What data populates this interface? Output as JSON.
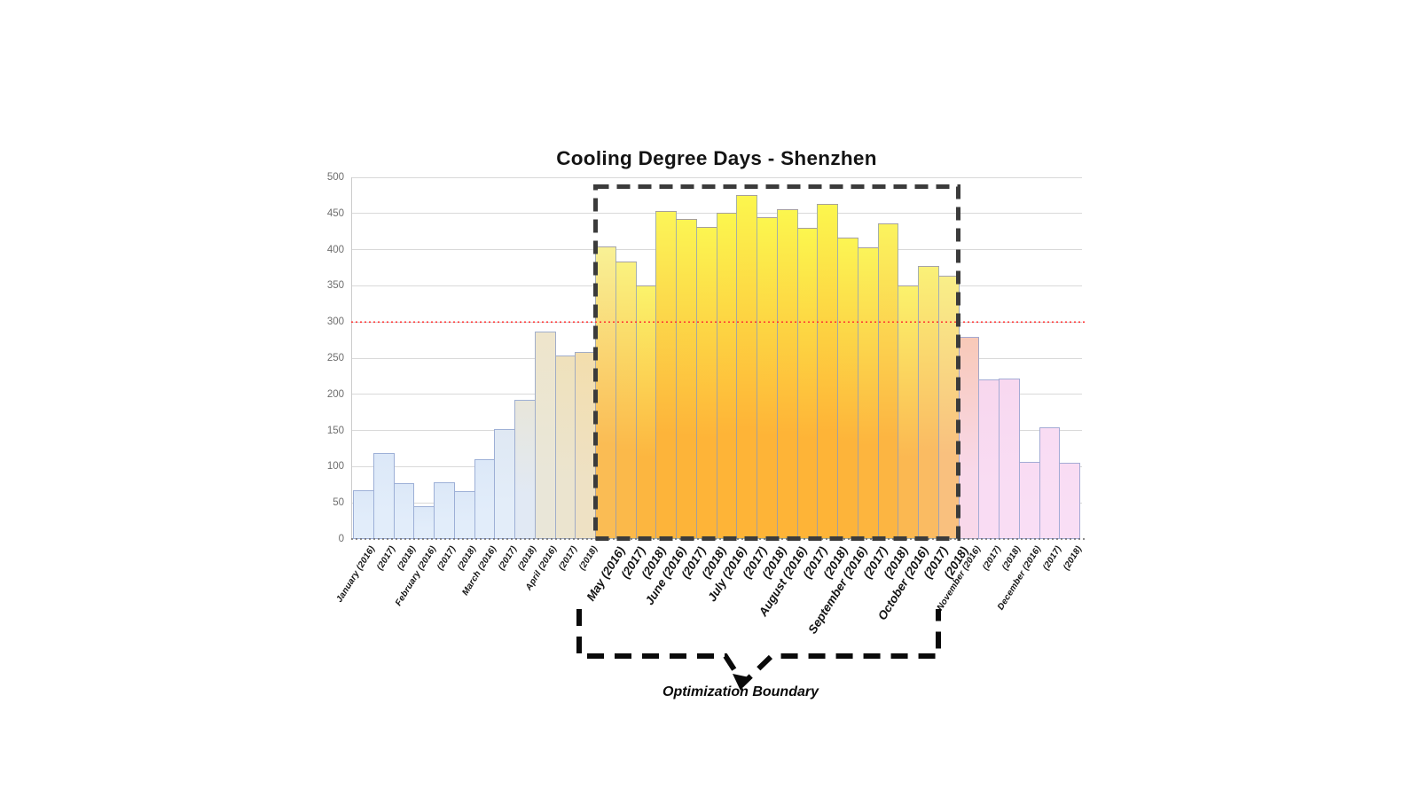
{
  "chart": {
    "title": "Cooling Degree Days - Shenzhen",
    "optimization_boundary_label": "Optimization Boundary"
  },
  "colors": {
    "gridline": "#d9d9d9",
    "axis_text": "#6e6e6e",
    "label_text": "#141414",
    "reference_line": "#ff3131",
    "boundary_dash": "#3b3b3b",
    "bracket_dash": "#0a0a0a",
    "bar_border": "rgba(128,150,200,0.7)"
  },
  "chart_data": {
    "type": "bar",
    "title": "Cooling Degree Days - Shenzhen",
    "xlabel": "",
    "ylabel": "",
    "ylim": [
      0,
      500
    ],
    "ytick_step": 50,
    "yticks": [
      0,
      50,
      100,
      150,
      200,
      250,
      300,
      350,
      400,
      450,
      500
    ],
    "grid": "horizontal",
    "legend": "none",
    "reference_line": {
      "value": 300,
      "color": "#ff3131",
      "style": "dotted"
    },
    "categories": [
      "January (2016)",
      "(2017)",
      "(2018)",
      "February (2016)",
      "(2017)",
      "(2018)",
      "March (2016)",
      "(2017)",
      "(2018)",
      "April (2016)",
      "(2017)",
      "(2018)",
      "May (2016)",
      "(2017)",
      "(2018)",
      "June (2016)",
      "(2017)",
      "(2018)",
      "July (2016)",
      "(2017)",
      "(2018)",
      "August (2016)",
      "(2017)",
      "(2018)",
      "September (2016)",
      "(2017)",
      "(2018)",
      "October (2016)",
      "(2017)",
      "(2018)",
      "November (2016)",
      "(2017)",
      "(2018)",
      "December (2016)",
      "(2017)",
      "(2018)"
    ],
    "values": [
      68,
      119,
      77,
      45,
      79,
      66,
      110,
      152,
      192,
      287,
      254,
      258,
      404,
      383,
      350,
      454,
      442,
      431,
      451,
      475,
      445,
      456,
      430,
      463,
      417,
      403,
      436,
      351,
      378,
      364,
      280,
      221,
      222,
      107,
      154,
      106
    ],
    "series_by_year": [
      {
        "name": "2016",
        "values": [
          68,
          45,
          110,
          287,
          404,
          454,
          451,
          456,
          417,
          351,
          280,
          107
        ]
      },
      {
        "name": "2017",
        "values": [
          119,
          79,
          152,
          254,
          383,
          442,
          475,
          430,
          403,
          378,
          221,
          154
        ]
      },
      {
        "name": "2018",
        "values": [
          77,
          66,
          192,
          258,
          350,
          431,
          445,
          463,
          436,
          364,
          222,
          106
        ]
      }
    ],
    "months": [
      "January",
      "February",
      "March",
      "April",
      "May",
      "June",
      "July",
      "August",
      "September",
      "October",
      "November",
      "December"
    ],
    "optimization_boundary": {
      "label": "Optimization Boundary",
      "months": [
        "May",
        "June",
        "July",
        "August",
        "September",
        "October"
      ],
      "first_bar_index": 12,
      "last_bar_index": 29
    },
    "bar_styles": [
      {
        "top": "#dce8f8",
        "bottom": "#e2edfa"
      },
      {
        "top": "#dce8f8",
        "bottom": "#e2edfa"
      },
      {
        "top": "#dce8f8",
        "bottom": "#e2edfa"
      },
      {
        "top": "#dce8f8",
        "bottom": "#e2edfa"
      },
      {
        "top": "#dce8f8",
        "bottom": "#e2edfa"
      },
      {
        "top": "#dce8f8",
        "bottom": "#e2edfa"
      },
      {
        "top": "#dce8f8",
        "bottom": "#e2edfa"
      },
      {
        "top": "#dfe8f3",
        "bottom": "#e3edf9"
      },
      {
        "top": "#e8e6da",
        "bottom": "#e1e9f4"
      },
      {
        "top": "#eee5cb",
        "bottom": "#e9e6d8"
      },
      {
        "top": "#efe1bb",
        "bottom": "#ebe4cf"
      },
      {
        "top": "#f3dead",
        "bottom": "#eee1c4"
      },
      {
        "top": "#f9f195",
        "bottom": "#fabc54"
      },
      {
        "top": "#faf27f",
        "bottom": "#fbb94a"
      },
      {
        "top": "#fbf36b",
        "bottom": "#fcb640"
      },
      {
        "top": "#fcf558",
        "bottom": "#fdb43a"
      },
      {
        "top": "#fcf553",
        "bottom": "#fdb439"
      },
      {
        "top": "#fcf551",
        "bottom": "#feb438"
      },
      {
        "top": "#fcf64e",
        "bottom": "#feb437"
      },
      {
        "top": "#fcf64e",
        "bottom": "#feb437"
      },
      {
        "top": "#fcf64e",
        "bottom": "#feb437"
      },
      {
        "top": "#fcf64e",
        "bottom": "#feb437"
      },
      {
        "top": "#fcf64e",
        "bottom": "#feb437"
      },
      {
        "top": "#fcf64e",
        "bottom": "#feb437"
      },
      {
        "top": "#fcf553",
        "bottom": "#fdb43a"
      },
      {
        "top": "#fbf45a",
        "bottom": "#fdb53e"
      },
      {
        "top": "#fbf35e",
        "bottom": "#fcb542"
      },
      {
        "top": "#fbf26c",
        "bottom": "#fbb851"
      },
      {
        "top": "#faf178",
        "bottom": "#fabb62"
      },
      {
        "top": "#f9ef88",
        "bottom": "#f9c07e"
      },
      {
        "top": "#f8c9b8",
        "bottom": "#f8d8ea"
      },
      {
        "top": "#f8d7ee",
        "bottom": "#f9dcf3"
      },
      {
        "top": "#f8d8f0",
        "bottom": "#f9ddf4"
      },
      {
        "top": "#f9dcf3",
        "bottom": "#f9def5"
      },
      {
        "top": "#f9dcf3",
        "bottom": "#f9def5"
      },
      {
        "top": "#f9dcf3",
        "bottom": "#f9def5"
      }
    ]
  }
}
